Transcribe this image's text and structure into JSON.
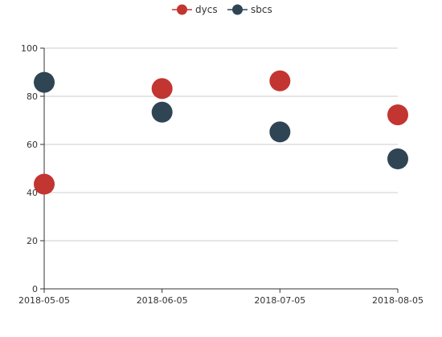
{
  "chart_data": {
    "type": "scatter",
    "title": "",
    "xlabel": "",
    "ylabel": "",
    "categories": [
      "2018-05-05",
      "2018-06-05",
      "2018-07-05",
      "2018-08-05"
    ],
    "ylim": [
      0,
      100
    ],
    "yticks": [
      0,
      20,
      40,
      60,
      80,
      100
    ],
    "grid": true,
    "legend_position": "top-center",
    "series": [
      {
        "name": "dycs",
        "color": "#c23531",
        "values": [
          43.5,
          83.2,
          86.4,
          72.3
        ]
      },
      {
        "name": "sbcs",
        "color": "#2f4554",
        "values": [
          85.8,
          73.4,
          65.2,
          54.0
        ]
      }
    ]
  }
}
